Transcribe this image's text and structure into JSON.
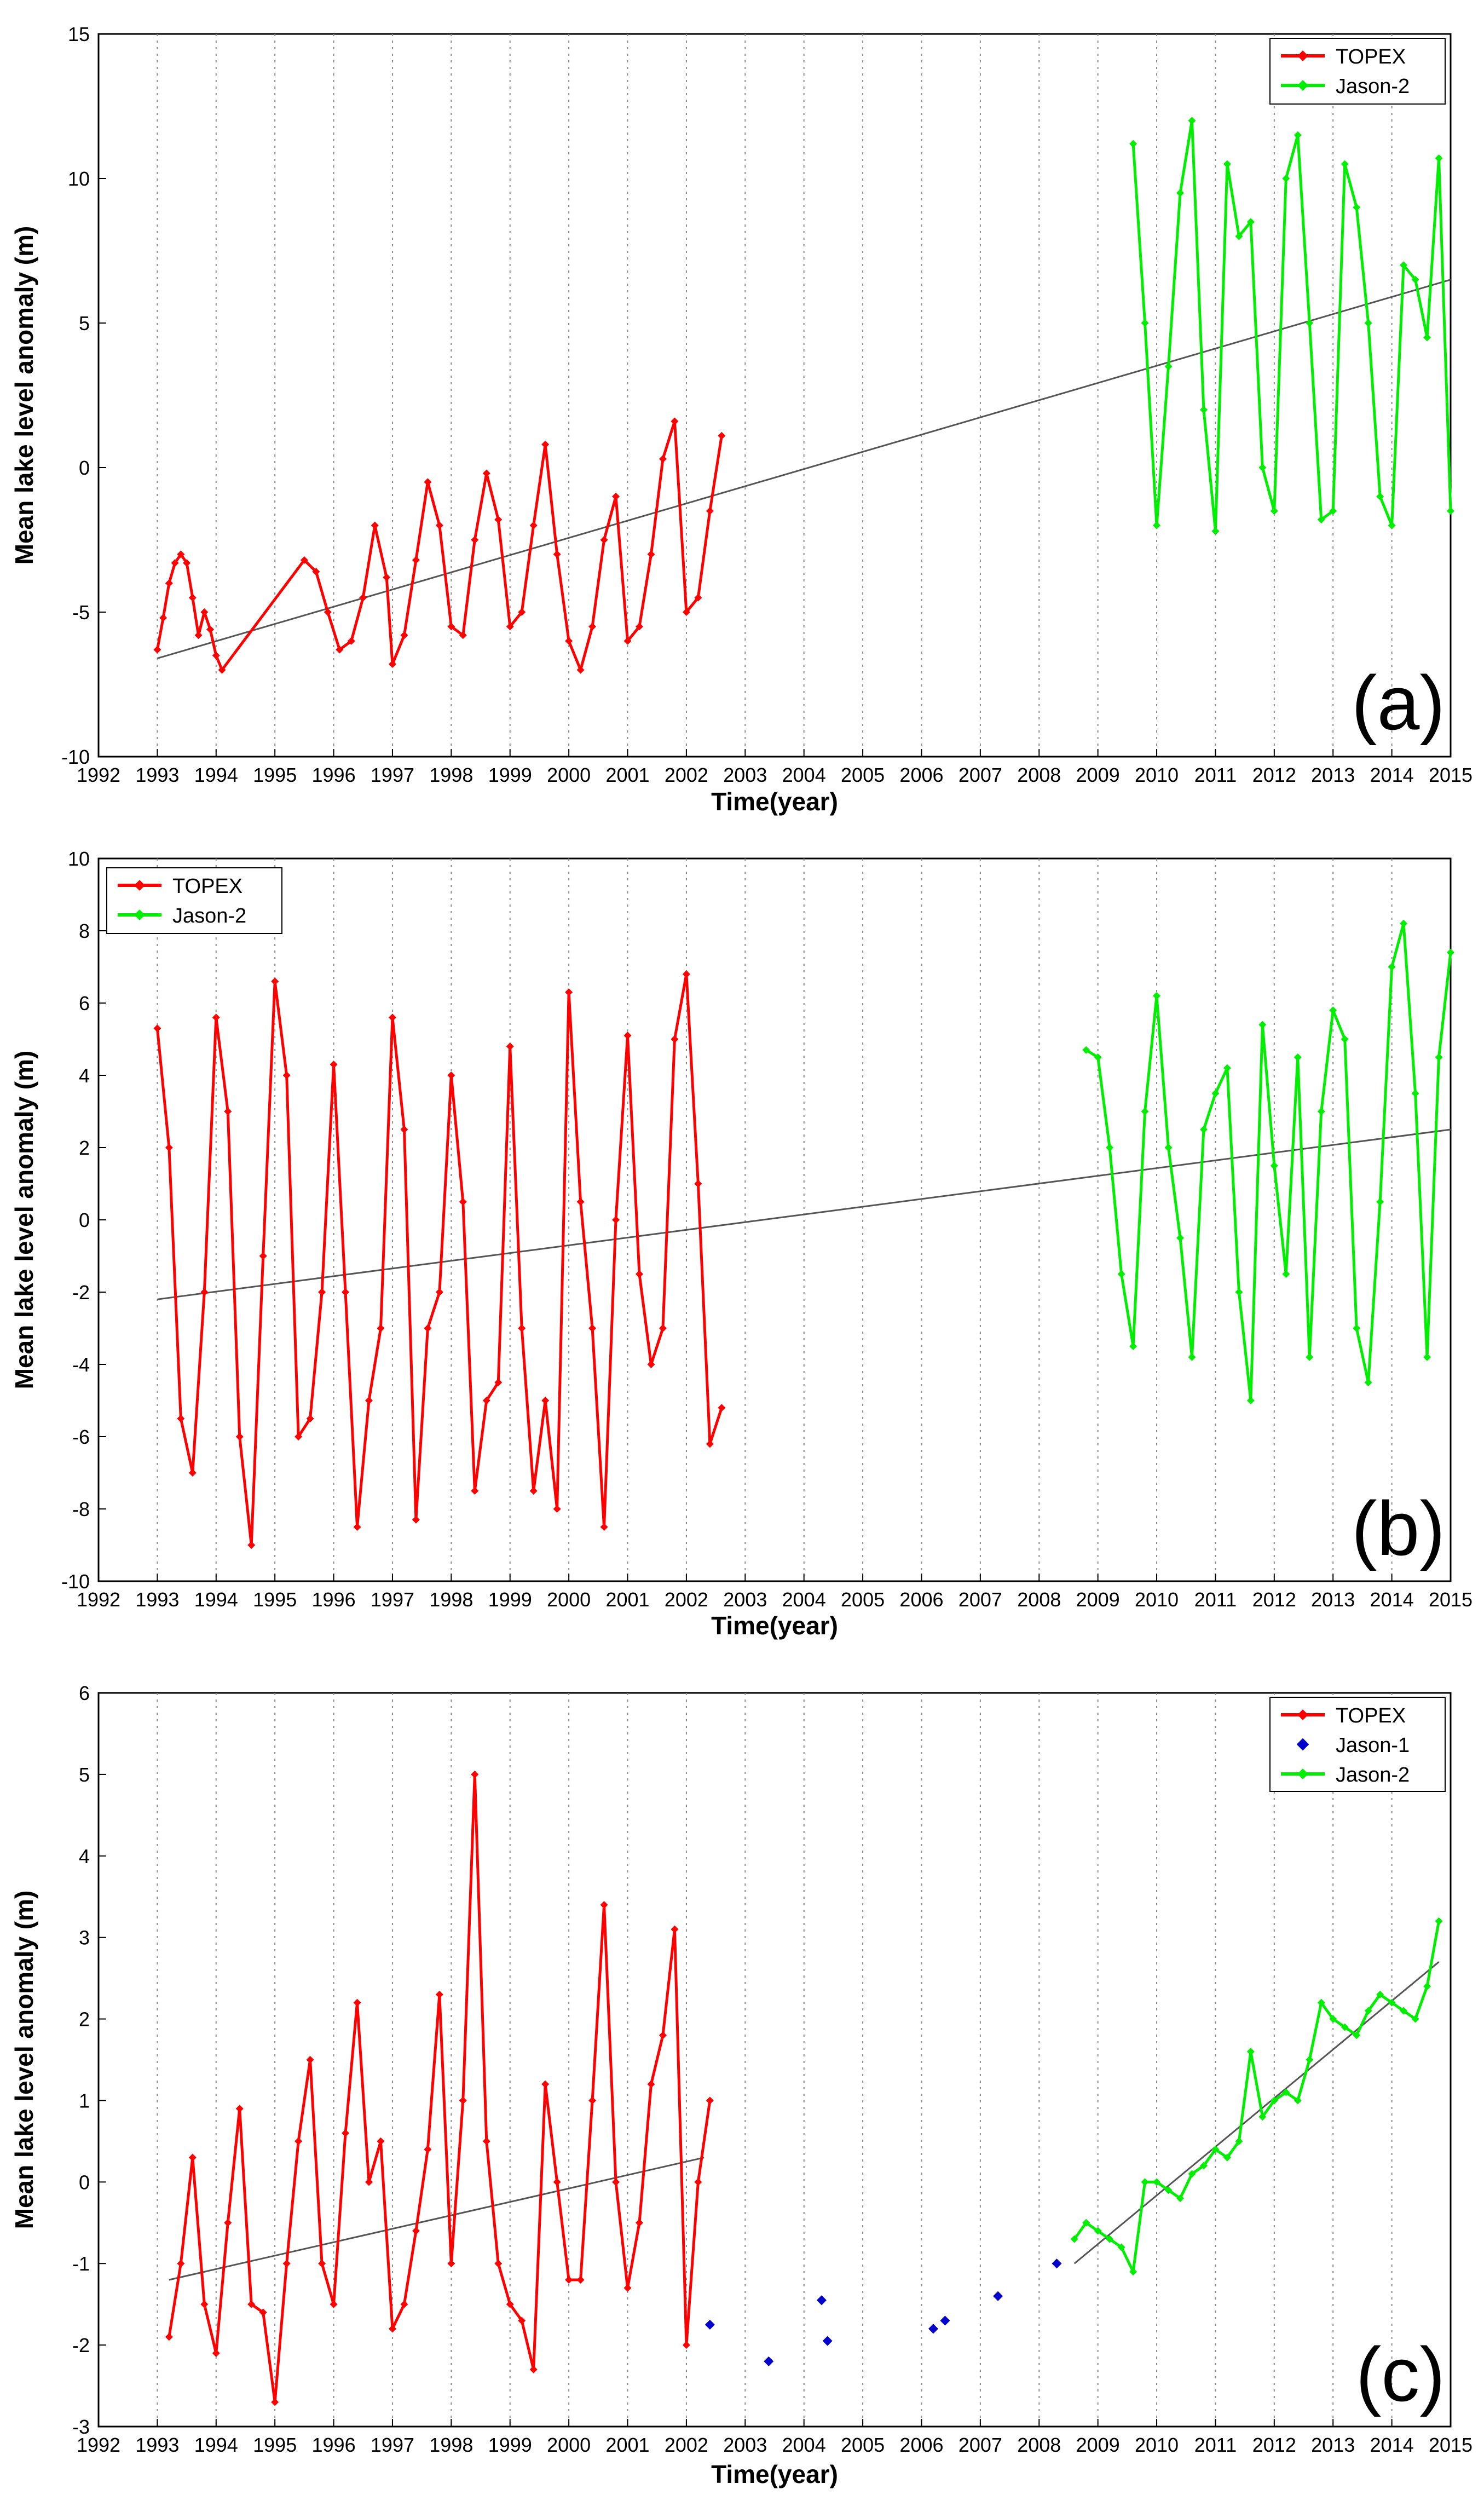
{
  "chart_data": [
    {
      "type": "line",
      "panel_label": "(a)",
      "xlabel": "Time(year)",
      "ylabel": "Mean lake level anomaly (m)",
      "xlim": [
        1992,
        2015
      ],
      "ylim": [
        -10,
        15
      ],
      "xticks": [
        1992,
        1993,
        1994,
        1995,
        1996,
        1997,
        1998,
        1999,
        2000,
        2001,
        2002,
        2003,
        2004,
        2005,
        2006,
        2007,
        2008,
        2009,
        2010,
        2011,
        2012,
        2013,
        2014,
        2015
      ],
      "xtick_labels": [
        "1992",
        "1993",
        "1994",
        "1995",
        "1996",
        "1997",
        "1998",
        "1999",
        "2000",
        "2001",
        "2002",
        "2003",
        "2004",
        "2005",
        "2006",
        "2007",
        "2008",
        "2009",
        "2010",
        "2011",
        "2012",
        "2013",
        "2014",
        "2015"
      ],
      "yticks": [
        -10,
        -5,
        0,
        5,
        10,
        15
      ],
      "ytick_labels": [
        "-10",
        "-5",
        "0",
        "5",
        "10",
        "15"
      ],
      "grid": "vertical dotted",
      "legend_position": "top-right",
      "series": [
        {
          "name": "TOPEX",
          "color": "#ff0000",
          "style": "line-diamond",
          "x": [
            1993.0,
            1993.1,
            1993.2,
            1993.3,
            1993.4,
            1993.5,
            1993.6,
            1993.7,
            1993.8,
            1993.9,
            1994.0,
            1994.1,
            1995.5,
            1995.7,
            1995.9,
            1996.1,
            1996.3,
            1996.5,
            1996.7,
            1996.9,
            1997.0,
            1997.2,
            1997.4,
            1997.6,
            1997.8,
            1998.0,
            1998.2,
            1998.4,
            1998.6,
            1998.8,
            1999.0,
            1999.2,
            1999.4,
            1999.6,
            1999.8,
            2000.0,
            2000.2,
            2000.4,
            2000.6,
            2000.8,
            2001.0,
            2001.2,
            2001.4,
            2001.6,
            2001.8,
            2002.0,
            2002.2,
            2002.4,
            2002.6
          ],
          "y": [
            -6.3,
            -5.2,
            -4.0,
            -3.3,
            -3.0,
            -3.3,
            -4.5,
            -5.8,
            -5.0,
            -5.6,
            -6.5,
            -7.0,
            -3.2,
            -3.6,
            -5.0,
            -6.3,
            -6.0,
            -4.5,
            -2.0,
            -3.8,
            -6.8,
            -5.8,
            -3.2,
            -0.5,
            -2.0,
            -5.5,
            -5.8,
            -2.5,
            -0.2,
            -1.8,
            -5.5,
            -5.0,
            -2.0,
            0.8,
            -3.0,
            -6.0,
            -7.0,
            -5.5,
            -2.5,
            -1.0,
            -6.0,
            -5.5,
            -3.0,
            0.3,
            1.6,
            -5.0,
            -4.5,
            -1.5,
            1.1
          ]
        },
        {
          "name": "Jason-2",
          "color": "#00ee00",
          "style": "line-diamond",
          "x": [
            2009.6,
            2009.8,
            2010.0,
            2010.2,
            2010.4,
            2010.6,
            2010.8,
            2011.0,
            2011.2,
            2011.4,
            2011.6,
            2011.8,
            2012.0,
            2012.2,
            2012.4,
            2012.6,
            2012.8,
            2013.0,
            2013.2,
            2013.4,
            2013.6,
            2013.8,
            2014.0,
            2014.2,
            2014.4,
            2014.6,
            2014.8,
            2015.0
          ],
          "y": [
            11.2,
            5.0,
            -2.0,
            3.5,
            9.5,
            12.0,
            2.0,
            -2.2,
            10.5,
            8.0,
            8.5,
            0.0,
            -1.5,
            10.0,
            11.5,
            5.0,
            -1.8,
            -1.5,
            10.5,
            9.0,
            5.0,
            -1.0,
            -2.0,
            7.0,
            6.5,
            4.5,
            10.7,
            -1.5
          ]
        }
      ],
      "trend_line": {
        "x": [
          1993.0,
          2015.0
        ],
        "y": [
          -6.6,
          6.5
        ],
        "color": "#555555"
      }
    },
    {
      "type": "line",
      "panel_label": "(b)",
      "xlabel": "Time(year)",
      "ylabel": "Mean lake level anomaly (m)",
      "xlim": [
        1992,
        2015
      ],
      "ylim": [
        -10,
        10
      ],
      "xticks": [
        1992,
        1993,
        1994,
        1995,
        1996,
        1997,
        1998,
        1999,
        2000,
        2001,
        2002,
        2003,
        2004,
        2005,
        2006,
        2007,
        2008,
        2009,
        2010,
        2011,
        2012,
        2013,
        2014,
        2015
      ],
      "xtick_labels": [
        "1992",
        "1993",
        "1994",
        "1995",
        "1996",
        "1997",
        "1998",
        "1999",
        "2000",
        "2001",
        "2002",
        "2003",
        "2004",
        "2005",
        "2006",
        "2007",
        "2008",
        "2009",
        "2010",
        "2011",
        "2012",
        "2013",
        "2014",
        "2015"
      ],
      "yticks": [
        -10,
        -8,
        -6,
        -4,
        -2,
        0,
        2,
        4,
        6,
        8,
        10
      ],
      "ytick_labels": [
        "-10",
        "-8",
        "-6",
        "-4",
        "-2",
        "0",
        "2",
        "4",
        "6",
        "8",
        "10"
      ],
      "grid": "vertical dotted",
      "legend_position": "top-left",
      "series": [
        {
          "name": "TOPEX",
          "color": "#ff0000",
          "style": "line-diamond",
          "x": [
            1993.0,
            1993.2,
            1993.4,
            1993.6,
            1993.8,
            1994.0,
            1994.2,
            1994.4,
            1994.6,
            1994.8,
            1995.0,
            1995.2,
            1995.4,
            1995.6,
            1995.8,
            1996.0,
            1996.2,
            1996.4,
            1996.6,
            1996.8,
            1997.0,
            1997.2,
            1997.4,
            1997.6,
            1997.8,
            1998.0,
            1998.2,
            1998.4,
            1998.6,
            1998.8,
            1999.0,
            1999.2,
            1999.4,
            1999.6,
            1999.8,
            2000.0,
            2000.2,
            2000.4,
            2000.6,
            2000.8,
            2001.0,
            2001.2,
            2001.4,
            2001.6,
            2001.8,
            2002.0,
            2002.2,
            2002.4,
            2002.6
          ],
          "y": [
            5.3,
            2.0,
            -5.5,
            -7.0,
            -2.0,
            5.6,
            3.0,
            -6.0,
            -9.0,
            -1.0,
            6.6,
            4.0,
            -6.0,
            -5.5,
            -2.0,
            4.3,
            -2.0,
            -8.5,
            -5.0,
            -3.0,
            5.6,
            2.5,
            -8.3,
            -3.0,
            -2.0,
            4.0,
            0.5,
            -7.5,
            -5.0,
            -4.5,
            4.8,
            -3.0,
            -7.5,
            -5.0,
            -8.0,
            6.3,
            0.5,
            -3.0,
            -8.5,
            0.0,
            5.1,
            -1.5,
            -4.0,
            -3.0,
            5.0,
            6.8,
            1.0,
            -6.2,
            -5.2
          ]
        },
        {
          "name": "Jason-2",
          "color": "#00ee00",
          "style": "line-diamond",
          "x": [
            2008.8,
            2009.0,
            2009.2,
            2009.4,
            2009.6,
            2009.8,
            2010.0,
            2010.2,
            2010.4,
            2010.6,
            2010.8,
            2011.0,
            2011.2,
            2011.4,
            2011.6,
            2011.8,
            2012.0,
            2012.2,
            2012.4,
            2012.6,
            2012.8,
            2013.0,
            2013.2,
            2013.4,
            2013.6,
            2013.8,
            2014.0,
            2014.2,
            2014.4,
            2014.6,
            2014.8,
            2015.0
          ],
          "y": [
            4.7,
            4.5,
            2.0,
            -1.5,
            -3.5,
            3.0,
            6.2,
            2.0,
            -0.5,
            -3.8,
            2.5,
            3.5,
            4.2,
            -2.0,
            -5.0,
            5.4,
            1.5,
            -1.5,
            4.5,
            -3.8,
            3.0,
            5.8,
            5.0,
            -3.0,
            -4.5,
            0.5,
            7.0,
            8.2,
            3.5,
            -3.8,
            4.5,
            7.4
          ]
        }
      ],
      "trend_line": {
        "x": [
          1993.0,
          2015.0
        ],
        "y": [
          -2.2,
          2.5
        ],
        "color": "#555555"
      }
    },
    {
      "type": "line",
      "panel_label": "(c)",
      "xlabel": "Time(year)",
      "ylabel": "Mean lake level anomaly (m)",
      "xlim": [
        1992,
        2015
      ],
      "ylim": [
        -3,
        6
      ],
      "xticks": [
        1992,
        1993,
        1994,
        1995,
        1996,
        1997,
        1998,
        1999,
        2000,
        2001,
        2002,
        2003,
        2004,
        2005,
        2006,
        2007,
        2008,
        2009,
        2010,
        2011,
        2012,
        2013,
        2014,
        2015
      ],
      "xtick_labels": [
        "1992",
        "1993",
        "1994",
        "1995",
        "1996",
        "1997",
        "1998",
        "1999",
        "2000",
        "2001",
        "2002",
        "2003",
        "2004",
        "2005",
        "2006",
        "2007",
        "2008",
        "2009",
        "2010",
        "2011",
        "2012",
        "2013",
        "2014",
        "2015"
      ],
      "yticks": [
        -3,
        -2,
        -1,
        0,
        1,
        2,
        3,
        4,
        5,
        6
      ],
      "ytick_labels": [
        "-3",
        "-2",
        "-1",
        "0",
        "1",
        "2",
        "3",
        "4",
        "5",
        "6"
      ],
      "grid": "vertical dotted",
      "legend_position": "top-right",
      "series": [
        {
          "name": "TOPEX",
          "color": "#ff0000",
          "style": "line-diamond",
          "x": [
            1993.2,
            1993.4,
            1993.6,
            1993.8,
            1994.0,
            1994.2,
            1994.4,
            1994.6,
            1994.8,
            1995.0,
            1995.2,
            1995.4,
            1995.6,
            1995.8,
            1996.0,
            1996.2,
            1996.4,
            1996.6,
            1996.8,
            1997.0,
            1997.2,
            1997.4,
            1997.6,
            1997.8,
            1998.0,
            1998.2,
            1998.4,
            1998.6,
            1998.8,
            1999.0,
            1999.2,
            1999.4,
            1999.6,
            1999.8,
            2000.0,
            2000.2,
            2000.4,
            2000.6,
            2000.8,
            2001.0,
            2001.2,
            2001.4,
            2001.6,
            2001.8,
            2002.0,
            2002.2,
            2002.4
          ],
          "y": [
            -1.9,
            -1.0,
            0.3,
            -1.5,
            -2.1,
            -0.5,
            0.9,
            -1.5,
            -1.6,
            -2.7,
            -1.0,
            0.5,
            1.5,
            -1.0,
            -1.5,
            0.6,
            2.2,
            0.0,
            0.5,
            -1.8,
            -1.5,
            -0.6,
            0.4,
            2.3,
            -1.0,
            1.0,
            5.0,
            0.5,
            -1.0,
            -1.5,
            -1.7,
            -2.3,
            1.2,
            0.0,
            -1.2,
            -1.2,
            1.0,
            3.4,
            0.0,
            -1.3,
            -0.5,
            1.2,
            1.8,
            3.1,
            -2.0,
            0.0,
            1.0
          ]
        },
        {
          "name": "Jason-1",
          "color": "#0000cc",
          "style": "marker-only",
          "x": [
            2002.4,
            2003.4,
            2004.3,
            2004.4,
            2006.2,
            2006.4,
            2007.3,
            2008.3
          ],
          "y": [
            -1.75,
            -2.2,
            -1.45,
            -1.95,
            -1.8,
            -1.7,
            -1.4,
            -1.0
          ]
        },
        {
          "name": "Jason-2",
          "color": "#00ee00",
          "style": "line-diamond",
          "x": [
            2008.6,
            2008.8,
            2009.0,
            2009.2,
            2009.4,
            2009.6,
            2009.8,
            2010.0,
            2010.2,
            2010.4,
            2010.6,
            2010.8,
            2011.0,
            2011.2,
            2011.4,
            2011.6,
            2011.8,
            2012.0,
            2012.2,
            2012.4,
            2012.6,
            2012.8,
            2013.0,
            2013.2,
            2013.4,
            2013.6,
            2013.8,
            2014.0,
            2014.2,
            2014.4,
            2014.6,
            2014.8
          ],
          "y": [
            -0.7,
            -0.5,
            -0.6,
            -0.7,
            -0.8,
            -1.1,
            0.0,
            0.0,
            -0.1,
            -0.2,
            0.1,
            0.2,
            0.4,
            0.3,
            0.5,
            1.6,
            0.8,
            1.0,
            1.1,
            1.0,
            1.5,
            2.2,
            2.0,
            1.9,
            1.8,
            2.1,
            2.3,
            2.2,
            2.1,
            2.0,
            2.4,
            3.2
          ]
        }
      ],
      "trend_line_topex": {
        "x": [
          1993.2,
          2002.3
        ],
        "y": [
          -1.2,
          0.3
        ],
        "color": "#555555"
      },
      "trend_line_jason2": {
        "x": [
          2008.6,
          2014.8
        ],
        "y": [
          -1.0,
          2.7
        ],
        "color": "#555555"
      }
    }
  ]
}
